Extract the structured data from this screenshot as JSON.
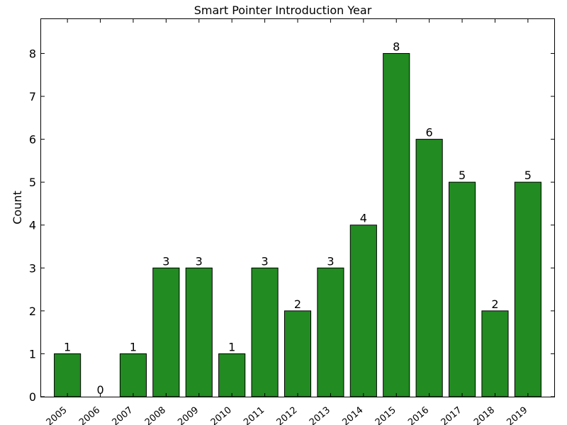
{
  "chart_data": {
    "type": "bar",
    "title": "Smart Pointer Introduction Year",
    "xlabel": "",
    "ylabel": "Count",
    "categories": [
      "2005",
      "2006",
      "2007",
      "2008",
      "2009",
      "2010",
      "2011",
      "2012",
      "2013",
      "2014",
      "2015",
      "2016",
      "2017",
      "2018",
      "2019"
    ],
    "values": [
      1,
      0,
      1,
      3,
      3,
      1,
      3,
      2,
      3,
      4,
      8,
      6,
      5,
      2,
      5
    ],
    "data_labels": [
      "1",
      "0",
      "1",
      "3",
      "3",
      "1",
      "3",
      "2",
      "3",
      "4",
      "8",
      "6",
      "5",
      "2",
      "5"
    ],
    "yticks": [
      "0",
      "1",
      "2",
      "3",
      "4",
      "5",
      "6",
      "7",
      "8"
    ],
    "ylim": [
      0,
      8.8
    ],
    "bar_color": "#228b22",
    "grid": false,
    "legend": "none"
  }
}
